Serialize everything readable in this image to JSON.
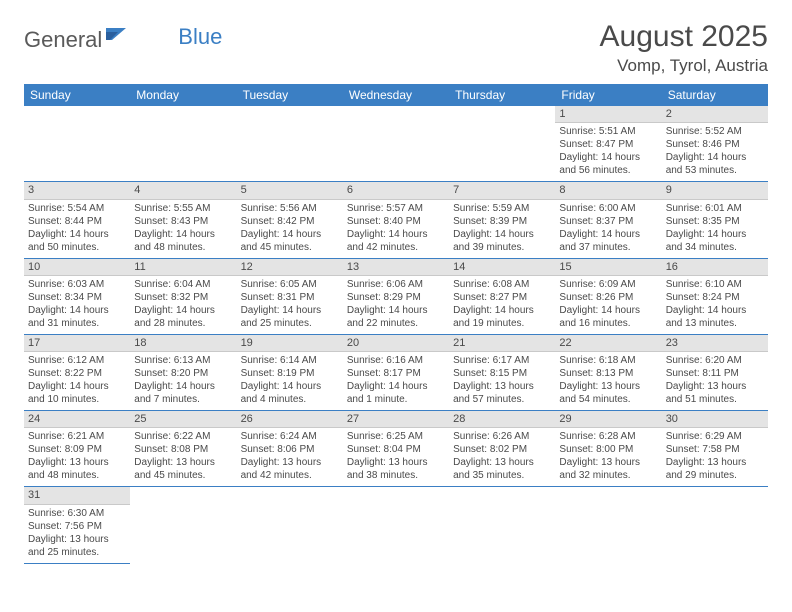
{
  "brand": {
    "name_part1": "General",
    "name_part2": "Blue"
  },
  "title": {
    "month": "August 2025",
    "location": "Vomp, Tyrol, Austria"
  },
  "colors": {
    "header_bg": "#3b7fc4",
    "header_text": "#ffffff",
    "daynum_bg": "#e4e4e4",
    "cell_border": "#3b7fc4",
    "text": "#4a4a4a"
  },
  "weekdays": [
    "Sunday",
    "Monday",
    "Tuesday",
    "Wednesday",
    "Thursday",
    "Friday",
    "Saturday"
  ],
  "weeks": [
    [
      null,
      null,
      null,
      null,
      null,
      {
        "day": "1",
        "sunrise": "Sunrise: 5:51 AM",
        "sunset": "Sunset: 8:47 PM",
        "daylight": "Daylight: 14 hours and 56 minutes."
      },
      {
        "day": "2",
        "sunrise": "Sunrise: 5:52 AM",
        "sunset": "Sunset: 8:46 PM",
        "daylight": "Daylight: 14 hours and 53 minutes."
      }
    ],
    [
      {
        "day": "3",
        "sunrise": "Sunrise: 5:54 AM",
        "sunset": "Sunset: 8:44 PM",
        "daylight": "Daylight: 14 hours and 50 minutes."
      },
      {
        "day": "4",
        "sunrise": "Sunrise: 5:55 AM",
        "sunset": "Sunset: 8:43 PM",
        "daylight": "Daylight: 14 hours and 48 minutes."
      },
      {
        "day": "5",
        "sunrise": "Sunrise: 5:56 AM",
        "sunset": "Sunset: 8:42 PM",
        "daylight": "Daylight: 14 hours and 45 minutes."
      },
      {
        "day": "6",
        "sunrise": "Sunrise: 5:57 AM",
        "sunset": "Sunset: 8:40 PM",
        "daylight": "Daylight: 14 hours and 42 minutes."
      },
      {
        "day": "7",
        "sunrise": "Sunrise: 5:59 AM",
        "sunset": "Sunset: 8:39 PM",
        "daylight": "Daylight: 14 hours and 39 minutes."
      },
      {
        "day": "8",
        "sunrise": "Sunrise: 6:00 AM",
        "sunset": "Sunset: 8:37 PM",
        "daylight": "Daylight: 14 hours and 37 minutes."
      },
      {
        "day": "9",
        "sunrise": "Sunrise: 6:01 AM",
        "sunset": "Sunset: 8:35 PM",
        "daylight": "Daylight: 14 hours and 34 minutes."
      }
    ],
    [
      {
        "day": "10",
        "sunrise": "Sunrise: 6:03 AM",
        "sunset": "Sunset: 8:34 PM",
        "daylight": "Daylight: 14 hours and 31 minutes."
      },
      {
        "day": "11",
        "sunrise": "Sunrise: 6:04 AM",
        "sunset": "Sunset: 8:32 PM",
        "daylight": "Daylight: 14 hours and 28 minutes."
      },
      {
        "day": "12",
        "sunrise": "Sunrise: 6:05 AM",
        "sunset": "Sunset: 8:31 PM",
        "daylight": "Daylight: 14 hours and 25 minutes."
      },
      {
        "day": "13",
        "sunrise": "Sunrise: 6:06 AM",
        "sunset": "Sunset: 8:29 PM",
        "daylight": "Daylight: 14 hours and 22 minutes."
      },
      {
        "day": "14",
        "sunrise": "Sunrise: 6:08 AM",
        "sunset": "Sunset: 8:27 PM",
        "daylight": "Daylight: 14 hours and 19 minutes."
      },
      {
        "day": "15",
        "sunrise": "Sunrise: 6:09 AM",
        "sunset": "Sunset: 8:26 PM",
        "daylight": "Daylight: 14 hours and 16 minutes."
      },
      {
        "day": "16",
        "sunrise": "Sunrise: 6:10 AM",
        "sunset": "Sunset: 8:24 PM",
        "daylight": "Daylight: 14 hours and 13 minutes."
      }
    ],
    [
      {
        "day": "17",
        "sunrise": "Sunrise: 6:12 AM",
        "sunset": "Sunset: 8:22 PM",
        "daylight": "Daylight: 14 hours and 10 minutes."
      },
      {
        "day": "18",
        "sunrise": "Sunrise: 6:13 AM",
        "sunset": "Sunset: 8:20 PM",
        "daylight": "Daylight: 14 hours and 7 minutes."
      },
      {
        "day": "19",
        "sunrise": "Sunrise: 6:14 AM",
        "sunset": "Sunset: 8:19 PM",
        "daylight": "Daylight: 14 hours and 4 minutes."
      },
      {
        "day": "20",
        "sunrise": "Sunrise: 6:16 AM",
        "sunset": "Sunset: 8:17 PM",
        "daylight": "Daylight: 14 hours and 1 minute."
      },
      {
        "day": "21",
        "sunrise": "Sunrise: 6:17 AM",
        "sunset": "Sunset: 8:15 PM",
        "daylight": "Daylight: 13 hours and 57 minutes."
      },
      {
        "day": "22",
        "sunrise": "Sunrise: 6:18 AM",
        "sunset": "Sunset: 8:13 PM",
        "daylight": "Daylight: 13 hours and 54 minutes."
      },
      {
        "day": "23",
        "sunrise": "Sunrise: 6:20 AM",
        "sunset": "Sunset: 8:11 PM",
        "daylight": "Daylight: 13 hours and 51 minutes."
      }
    ],
    [
      {
        "day": "24",
        "sunrise": "Sunrise: 6:21 AM",
        "sunset": "Sunset: 8:09 PM",
        "daylight": "Daylight: 13 hours and 48 minutes."
      },
      {
        "day": "25",
        "sunrise": "Sunrise: 6:22 AM",
        "sunset": "Sunset: 8:08 PM",
        "daylight": "Daylight: 13 hours and 45 minutes."
      },
      {
        "day": "26",
        "sunrise": "Sunrise: 6:24 AM",
        "sunset": "Sunset: 8:06 PM",
        "daylight": "Daylight: 13 hours and 42 minutes."
      },
      {
        "day": "27",
        "sunrise": "Sunrise: 6:25 AM",
        "sunset": "Sunset: 8:04 PM",
        "daylight": "Daylight: 13 hours and 38 minutes."
      },
      {
        "day": "28",
        "sunrise": "Sunrise: 6:26 AM",
        "sunset": "Sunset: 8:02 PM",
        "daylight": "Daylight: 13 hours and 35 minutes."
      },
      {
        "day": "29",
        "sunrise": "Sunrise: 6:28 AM",
        "sunset": "Sunset: 8:00 PM",
        "daylight": "Daylight: 13 hours and 32 minutes."
      },
      {
        "day": "30",
        "sunrise": "Sunrise: 6:29 AM",
        "sunset": "Sunset: 7:58 PM",
        "daylight": "Daylight: 13 hours and 29 minutes."
      }
    ],
    [
      {
        "day": "31",
        "sunrise": "Sunrise: 6:30 AM",
        "sunset": "Sunset: 7:56 PM",
        "daylight": "Daylight: 13 hours and 25 minutes."
      },
      null,
      null,
      null,
      null,
      null,
      null
    ]
  ]
}
